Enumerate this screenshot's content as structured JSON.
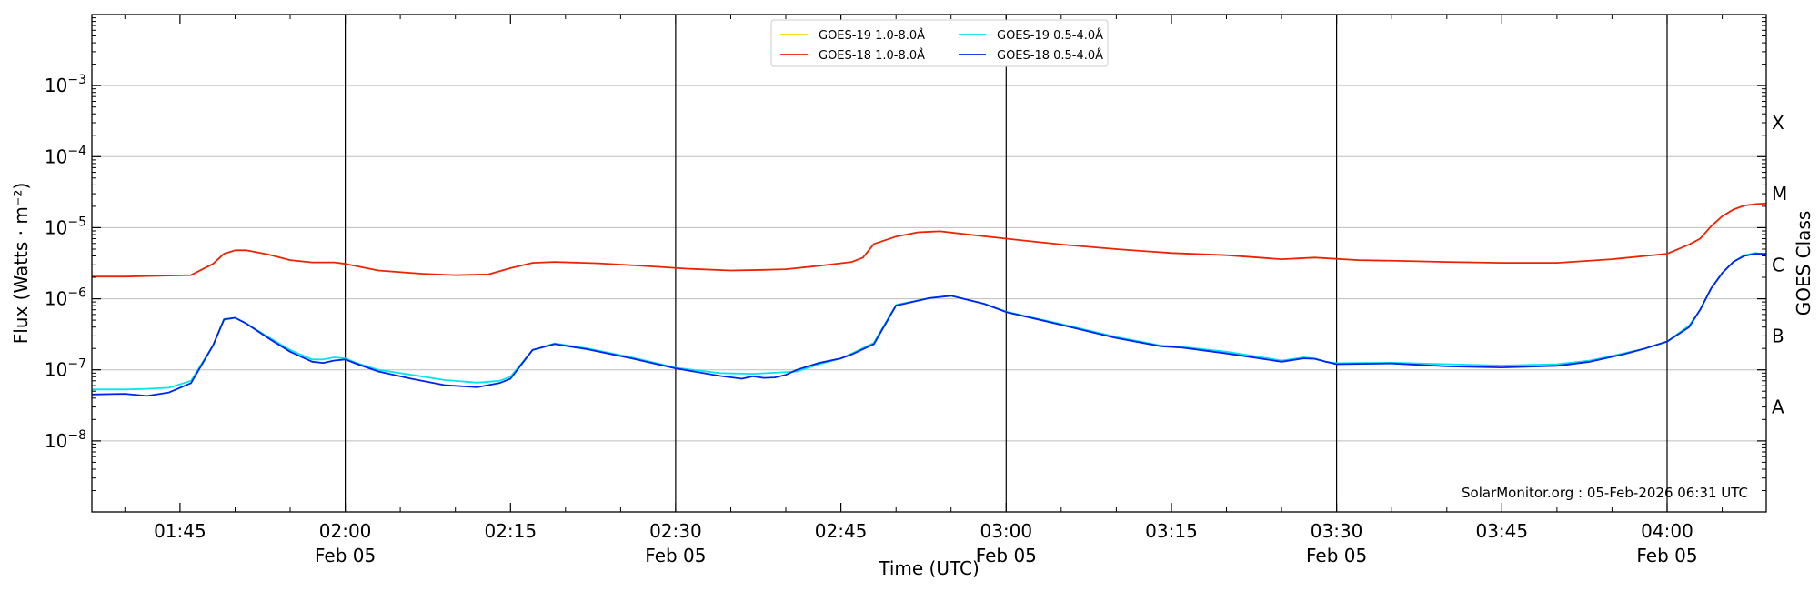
{
  "chart_data": {
    "type": "line",
    "title": "",
    "xlabel": "Time (UTC)",
    "ylabel": "Flux (Watts · m⁻²)",
    "y2label": "GOES Class",
    "yscale": "log",
    "ylim": [
      1e-09,
      0.01
    ],
    "xlim": [
      "01:37",
      "04:09"
    ],
    "x_ticks": [
      {
        "t": "01:45",
        "label": "01:45",
        "date": ""
      },
      {
        "t": "02:00",
        "label": "02:00",
        "date": "Feb 05"
      },
      {
        "t": "02:15",
        "label": "02:15",
        "date": ""
      },
      {
        "t": "02:30",
        "label": "02:30",
        "date": "Feb 05"
      },
      {
        "t": "02:45",
        "label": "02:45",
        "date": ""
      },
      {
        "t": "03:00",
        "label": "03:00",
        "date": "Feb 05"
      },
      {
        "t": "03:15",
        "label": "03:15",
        "date": ""
      },
      {
        "t": "03:30",
        "label": "03:30",
        "date": "Feb 05"
      },
      {
        "t": "03:45",
        "label": "03:45",
        "date": ""
      },
      {
        "t": "04:00",
        "label": "04:00",
        "date": "Feb 05"
      }
    ],
    "y_ticks": [
      {
        "base": "10",
        "exp": "−8",
        "value": 1e-08
      },
      {
        "base": "10",
        "exp": "−7",
        "value": 1e-07
      },
      {
        "base": "10",
        "exp": "−6",
        "value": 1e-06
      },
      {
        "base": "10",
        "exp": "−5",
        "value": 1e-05
      },
      {
        "base": "10",
        "exp": "−4",
        "value": 0.0001
      },
      {
        "base": "10",
        "exp": "−3",
        "value": 0.001
      }
    ],
    "goes_classes": [
      {
        "label": "A",
        "value": 3e-08
      },
      {
        "label": "B",
        "value": 3e-07
      },
      {
        "label": "C",
        "value": 3e-06
      },
      {
        "label": "M",
        "value": 3e-05
      },
      {
        "label": "X",
        "value": 0.0003
      }
    ],
    "vertical_lines": [
      "02:00",
      "02:30",
      "03:00",
      "03:30",
      "04:00"
    ],
    "grid": "horizontal",
    "legend_position": "top-center",
    "watermark": "SolarMonitor.org : 05-Feb-2026 06:31 UTC",
    "series": [
      {
        "name": "GOES-19 1.0-8.0Å",
        "color": "#ffd700",
        "x": [],
        "y": []
      },
      {
        "name": "GOES-19 0.5-4.0Å",
        "color": "#00e5ee",
        "x": [
          "01:37",
          "01:40",
          "01:42",
          "01:44",
          "01:46",
          "01:48",
          "01:49",
          "01:50",
          "01:51",
          "01:53",
          "01:55",
          "01:57",
          "01:58",
          "01:59",
          "02:00",
          "02:01",
          "02:03",
          "02:06",
          "02:09",
          "02:12",
          "02:14",
          "02:15",
          "02:17",
          "02:19",
          "02:22",
          "02:26",
          "02:30",
          "02:34",
          "02:37",
          "02:39",
          "02:41",
          "02:43",
          "02:45",
          "02:46",
          "02:48",
          "02:50",
          "02:53",
          "02:55",
          "02:58",
          "03:00",
          "03:05",
          "03:10",
          "03:14",
          "03:16",
          "03:20",
          "03:25",
          "03:27",
          "03:28",
          "03:29",
          "03:30",
          "03:35",
          "03:40",
          "03:45",
          "03:50",
          "03:53",
          "03:56",
          "03:58",
          "04:00",
          "04:02",
          "04:03",
          "04:04",
          "04:05",
          "04:06",
          "04:07",
          "04:08",
          "04:09"
        ],
        "y": [
          5.3e-08,
          5.3e-08,
          5.4e-08,
          5.6e-08,
          7e-08,
          2.2e-07,
          5.2e-07,
          5.4e-07,
          4.5e-07,
          2.9e-07,
          1.9e-07,
          1.4e-07,
          1.4e-07,
          1.5e-07,
          1.45e-07,
          1.25e-07,
          1e-07,
          8.5e-08,
          7.2e-08,
          6.6e-08,
          7e-08,
          8e-08,
          1.9e-07,
          2.35e-07,
          2e-07,
          1.5e-07,
          1.07e-07,
          9e-08,
          8.8e-08,
          9.1e-08,
          9.5e-08,
          1.2e-07,
          1.45e-07,
          1.7e-07,
          2.4e-07,
          8.2e-07,
          1.02e-06,
          1.1e-06,
          8.5e-07,
          6.6e-07,
          4.4e-07,
          2.9e-07,
          2.2e-07,
          2.1e-07,
          1.8e-07,
          1.35e-07,
          1.5e-07,
          1.45e-07,
          1.3e-07,
          1.24e-07,
          1.26e-07,
          1.2e-07,
          1.15e-07,
          1.2e-07,
          1.35e-07,
          1.7e-07,
          2e-07,
          2.5e-07,
          4.2e-07,
          7e-07,
          1.4e-06,
          2.3e-06,
          3.3e-06,
          4.1e-06,
          4.4e-06,
          4.2e-06
        ]
      },
      {
        "name": "GOES-18 1.0-8.0Å",
        "color": "#ee2200",
        "x": [
          "01:37",
          "01:40",
          "01:43",
          "01:46",
          "01:48",
          "01:49",
          "01:50",
          "01:51",
          "01:53",
          "01:55",
          "01:57",
          "01:59",
          "02:00",
          "02:03",
          "02:07",
          "02:10",
          "02:13",
          "02:15",
          "02:17",
          "02:19",
          "02:23",
          "02:27",
          "02:31",
          "02:35",
          "02:38",
          "02:40",
          "02:43",
          "02:46",
          "02:47",
          "02:48",
          "02:50",
          "02:52",
          "02:54",
          "02:56",
          "03:00",
          "03:05",
          "03:10",
          "03:15",
          "03:20",
          "03:25",
          "03:28",
          "03:32",
          "03:36",
          "03:40",
          "03:45",
          "03:50",
          "03:55",
          "04:00",
          "04:02",
          "04:03",
          "04:04",
          "04:05",
          "04:06",
          "04:07",
          "04:08",
          "04:09"
        ],
        "y": [
          2.05e-06,
          2.05e-06,
          2.1e-06,
          2.15e-06,
          3.1e-06,
          4.3e-06,
          4.8e-06,
          4.8e-06,
          4.2e-06,
          3.5e-06,
          3.25e-06,
          3.25e-06,
          3.1e-06,
          2.5e-06,
          2.25e-06,
          2.15e-06,
          2.2e-06,
          2.7e-06,
          3.2e-06,
          3.3e-06,
          3.15e-06,
          2.9e-06,
          2.65e-06,
          2.5e-06,
          2.55e-06,
          2.6e-06,
          2.9e-06,
          3.3e-06,
          3.8e-06,
          5.9e-06,
          7.5e-06,
          8.6e-06,
          8.9e-06,
          8.2e-06,
          7e-06,
          5.8e-06,
          5e-06,
          4.4e-06,
          4.1e-06,
          3.6e-06,
          3.8e-06,
          3.5e-06,
          3.4e-06,
          3.3e-06,
          3.2e-06,
          3.2e-06,
          3.6e-06,
          4.3e-06,
          5.8e-06,
          7e-06,
          1.05e-05,
          1.45e-05,
          1.8e-05,
          2.05e-05,
          2.15e-05,
          2.2e-05
        ]
      },
      {
        "name": "GOES-18 0.5-4.0Å",
        "color": "#0022ee",
        "x": [
          "01:37",
          "01:40",
          "01:42",
          "01:44",
          "01:46",
          "01:48",
          "01:49",
          "01:50",
          "01:51",
          "01:53",
          "01:55",
          "01:57",
          "01:58",
          "01:59",
          "02:00",
          "02:01",
          "02:03",
          "02:06",
          "02:09",
          "02:12",
          "02:14",
          "02:15",
          "02:17",
          "02:19",
          "02:22",
          "02:26",
          "02:30",
          "02:34",
          "02:36",
          "02:37",
          "02:38",
          "02:39",
          "02:40",
          "02:41",
          "02:43",
          "02:45",
          "02:46",
          "02:48",
          "02:50",
          "02:53",
          "02:55",
          "02:58",
          "03:00",
          "03:05",
          "03:10",
          "03:14",
          "03:16",
          "03:20",
          "03:25",
          "03:27",
          "03:28",
          "03:29",
          "03:30",
          "03:35",
          "03:40",
          "03:45",
          "03:50",
          "03:53",
          "03:56",
          "03:58",
          "04:00",
          "04:02",
          "04:03",
          "04:04",
          "04:05",
          "04:06",
          "04:07",
          "04:08",
          "04:09"
        ],
        "y": [
          4.5e-08,
          4.6e-08,
          4.3e-08,
          4.8e-08,
          6.5e-08,
          2.2e-07,
          5.1e-07,
          5.4e-07,
          4.5e-07,
          2.8e-07,
          1.8e-07,
          1.3e-07,
          1.25e-07,
          1.35e-07,
          1.4e-07,
          1.22e-07,
          9.5e-08,
          7.5e-08,
          6.1e-08,
          5.7e-08,
          6.5e-08,
          7.5e-08,
          1.9e-07,
          2.3e-07,
          1.95e-07,
          1.45e-07,
          1.05e-07,
          8.2e-08,
          7.5e-08,
          8.1e-08,
          7.7e-08,
          7.8e-08,
          8.5e-08,
          1e-07,
          1.25e-07,
          1.45e-07,
          1.65e-07,
          2.3e-07,
          8e-07,
          1.02e-06,
          1.1e-06,
          8.5e-07,
          6.5e-07,
          4.3e-07,
          2.8e-07,
          2.15e-07,
          2.05e-07,
          1.7e-07,
          1.3e-07,
          1.45e-07,
          1.43e-07,
          1.3e-07,
          1.2e-07,
          1.23e-07,
          1.12e-07,
          1.08e-07,
          1.14e-07,
          1.3e-07,
          1.65e-07,
          2e-07,
          2.5e-07,
          4e-07,
          7e-07,
          1.4e-06,
          2.3e-06,
          3.3e-06,
          4e-06,
          4.3e-06,
          4.3e-06
        ]
      }
    ]
  }
}
